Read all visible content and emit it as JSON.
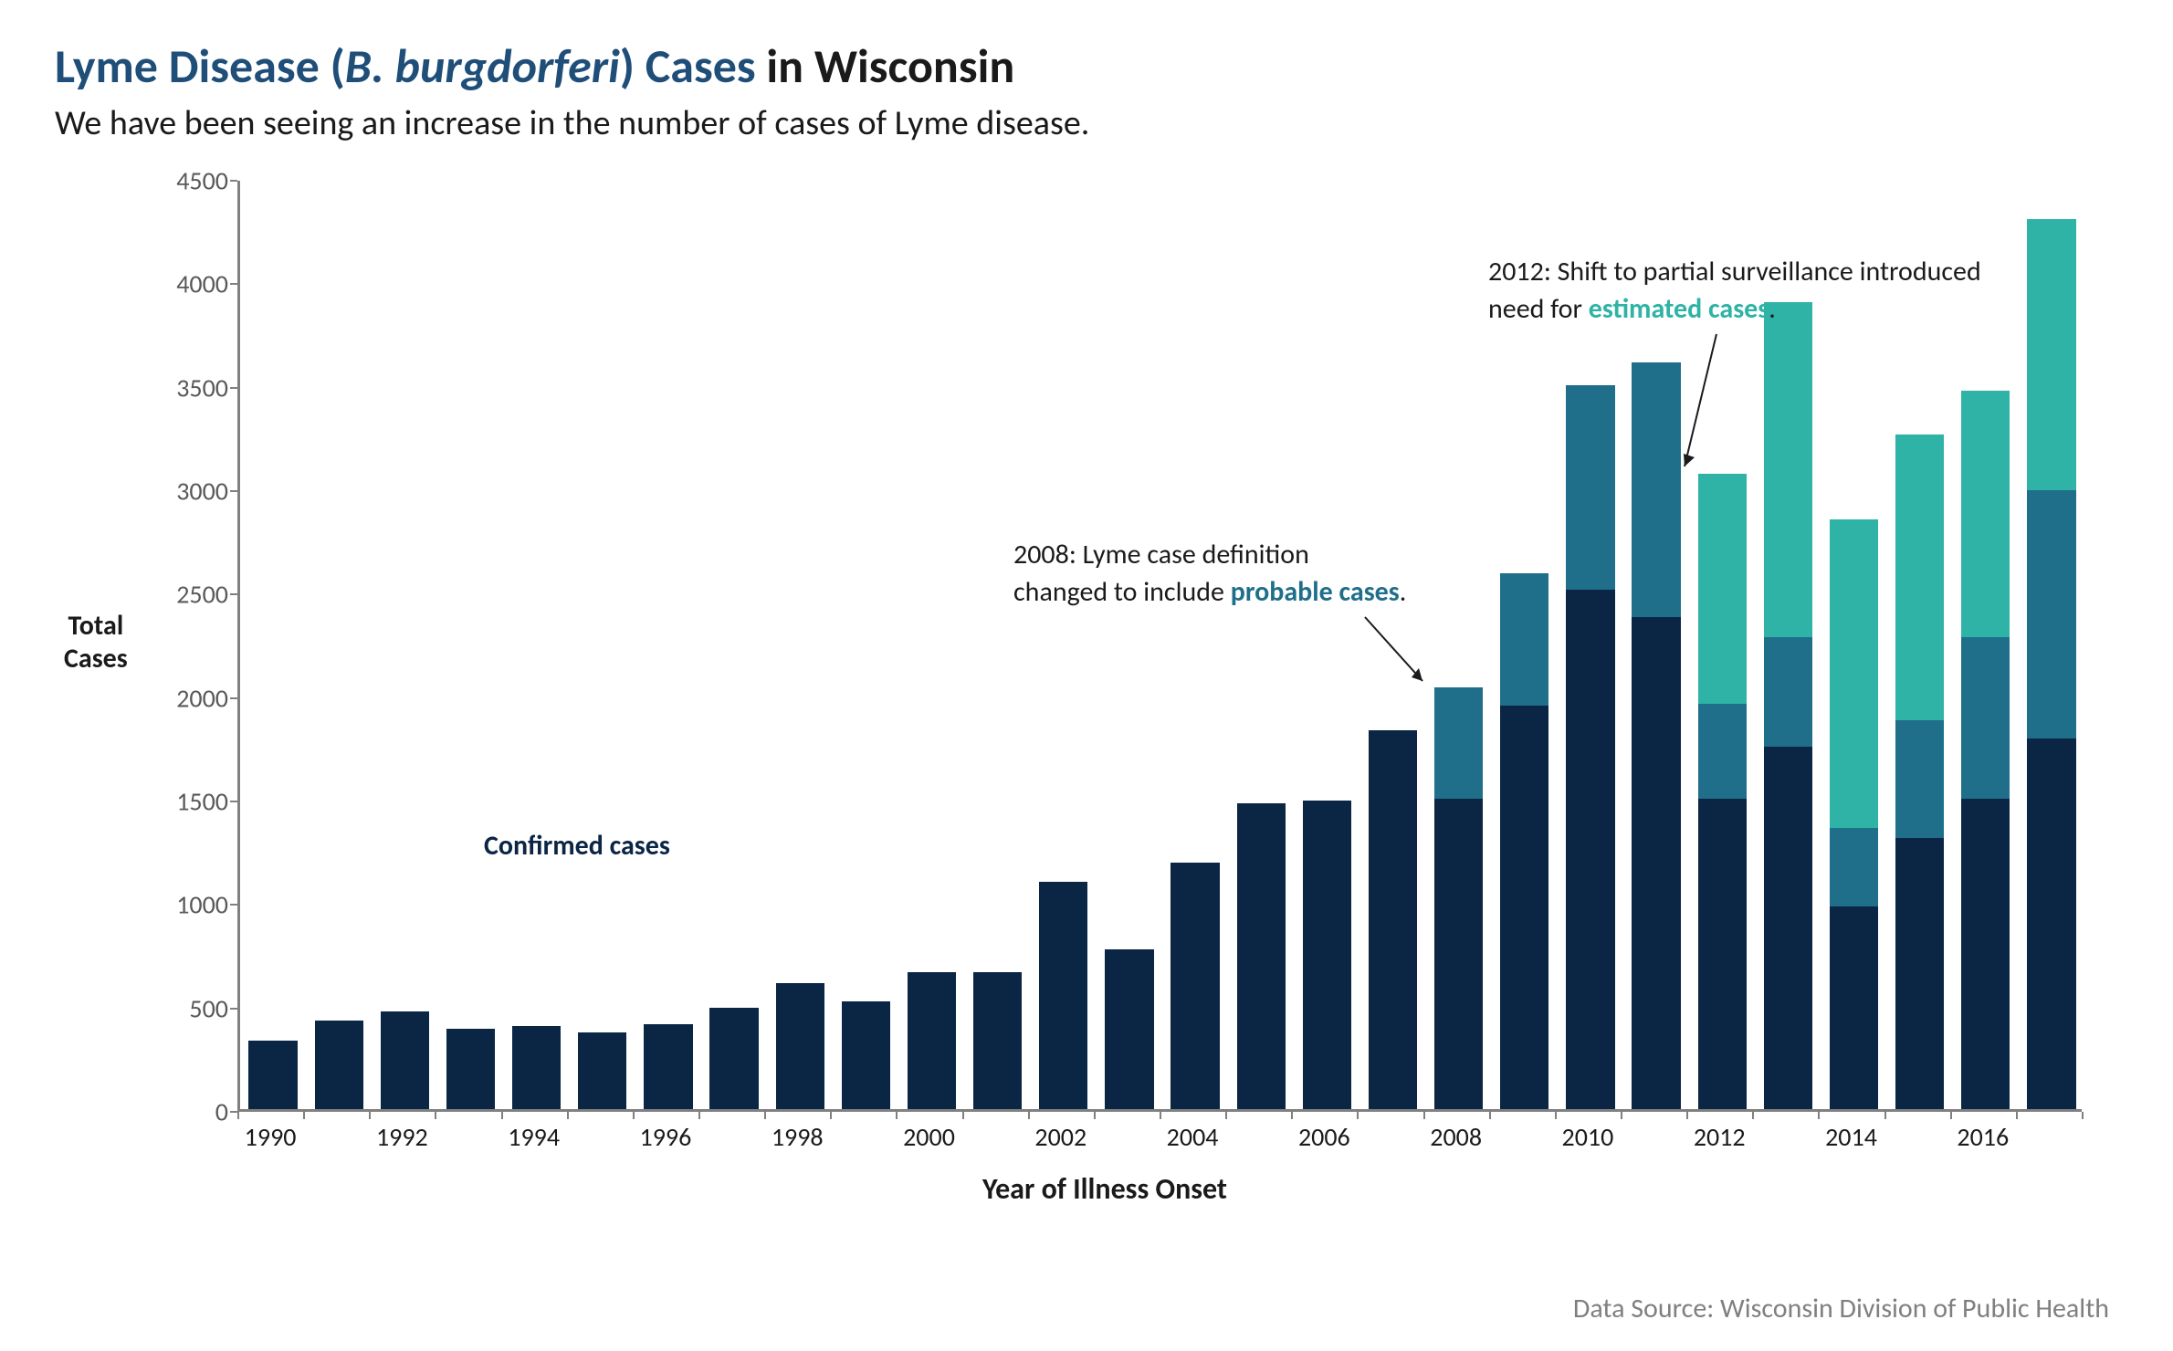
{
  "title": {
    "prefix": "Lyme Disease (",
    "italic": "B. burgdorferi",
    "mid": ") Cases",
    "suffix": " in Wisconsin"
  },
  "subtitle": "We have been seeing an increase in the number of cases of Lyme disease.",
  "chart": {
    "type": "stacked-bar",
    "ylabel": "Total\nCases",
    "xlabel": "Year of Illness Onset",
    "ylim": [
      0,
      4500
    ],
    "yticks": [
      0,
      500,
      1000,
      1500,
      2000,
      2500,
      3000,
      3500,
      4000,
      4500
    ],
    "xtick_labels": [
      1990,
      1992,
      1994,
      1996,
      1998,
      2000,
      2002,
      2004,
      2006,
      2008,
      2010,
      2012,
      2014,
      2016
    ],
    "years": [
      1990,
      1991,
      1992,
      1993,
      1994,
      1995,
      1996,
      1997,
      1998,
      1999,
      2000,
      2001,
      2002,
      2003,
      2004,
      2005,
      2006,
      2007,
      2008,
      2009,
      2010,
      2011,
      2012,
      2013,
      2014,
      2015,
      2016,
      2017
    ],
    "series": {
      "confirmed": {
        "color": "#0b2545",
        "label": "Confirmed cases"
      },
      "probable": {
        "color": "#1f6f8b",
        "label": "probable cases"
      },
      "estimated": {
        "color": "#2fb3a6",
        "label": "estimated cases"
      }
    },
    "data": [
      {
        "year": 1990,
        "confirmed": 330,
        "probable": 0,
        "estimated": 0
      },
      {
        "year": 1991,
        "confirmed": 430,
        "probable": 0,
        "estimated": 0
      },
      {
        "year": 1992,
        "confirmed": 470,
        "probable": 0,
        "estimated": 0
      },
      {
        "year": 1993,
        "confirmed": 390,
        "probable": 0,
        "estimated": 0
      },
      {
        "year": 1994,
        "confirmed": 400,
        "probable": 0,
        "estimated": 0
      },
      {
        "year": 1995,
        "confirmed": 370,
        "probable": 0,
        "estimated": 0
      },
      {
        "year": 1996,
        "confirmed": 410,
        "probable": 0,
        "estimated": 0
      },
      {
        "year": 1997,
        "confirmed": 490,
        "probable": 0,
        "estimated": 0
      },
      {
        "year": 1998,
        "confirmed": 610,
        "probable": 0,
        "estimated": 0
      },
      {
        "year": 1999,
        "confirmed": 520,
        "probable": 0,
        "estimated": 0
      },
      {
        "year": 2000,
        "confirmed": 660,
        "probable": 0,
        "estimated": 0
      },
      {
        "year": 2001,
        "confirmed": 660,
        "probable": 0,
        "estimated": 0
      },
      {
        "year": 2002,
        "confirmed": 1100,
        "probable": 0,
        "estimated": 0
      },
      {
        "year": 2003,
        "confirmed": 770,
        "probable": 0,
        "estimated": 0
      },
      {
        "year": 2004,
        "confirmed": 1190,
        "probable": 0,
        "estimated": 0
      },
      {
        "year": 2005,
        "confirmed": 1480,
        "probable": 0,
        "estimated": 0
      },
      {
        "year": 2006,
        "confirmed": 1490,
        "probable": 0,
        "estimated": 0
      },
      {
        "year": 2007,
        "confirmed": 1830,
        "probable": 0,
        "estimated": 0
      },
      {
        "year": 2008,
        "confirmed": 1500,
        "probable": 540,
        "estimated": 0
      },
      {
        "year": 2009,
        "confirmed": 1950,
        "probable": 640,
        "estimated": 0
      },
      {
        "year": 2010,
        "confirmed": 2510,
        "probable": 990,
        "estimated": 0
      },
      {
        "year": 2011,
        "confirmed": 2380,
        "probable": 1230,
        "estimated": 0
      },
      {
        "year": 2012,
        "confirmed": 1500,
        "probable": 460,
        "estimated": 1110
      },
      {
        "year": 2013,
        "confirmed": 1750,
        "probable": 530,
        "estimated": 1620
      },
      {
        "year": 2014,
        "confirmed": 980,
        "probable": 380,
        "estimated": 1490
      },
      {
        "year": 2015,
        "confirmed": 1310,
        "probable": 570,
        "estimated": 1380
      },
      {
        "year": 2016,
        "confirmed": 1500,
        "probable": 780,
        "estimated": 1190
      },
      {
        "year": 2017,
        "confirmed": 1790,
        "probable": 1200,
        "estimated": 1310
      }
    ],
    "bar_width_ratio": 0.74,
    "background_color": "#ffffff",
    "axis_color": "#808080",
    "tick_fontsize": 28,
    "label_fontsize": 32
  },
  "annotations": {
    "confirmed_label": "Confirmed cases",
    "a2008_line1": "2008: Lyme case definition",
    "a2008_line2_pre": "changed to include ",
    "a2008_line2_em": "probable cases",
    "a2008_line2_post": ".",
    "a2012_line1": "2012: Shift to partial surveillance introduced",
    "a2012_line2_pre": "need for ",
    "a2012_line2_em": "estimated cases",
    "a2012_line2_post": "."
  },
  "source": "Data Source: Wisconsin Division of Public Health"
}
